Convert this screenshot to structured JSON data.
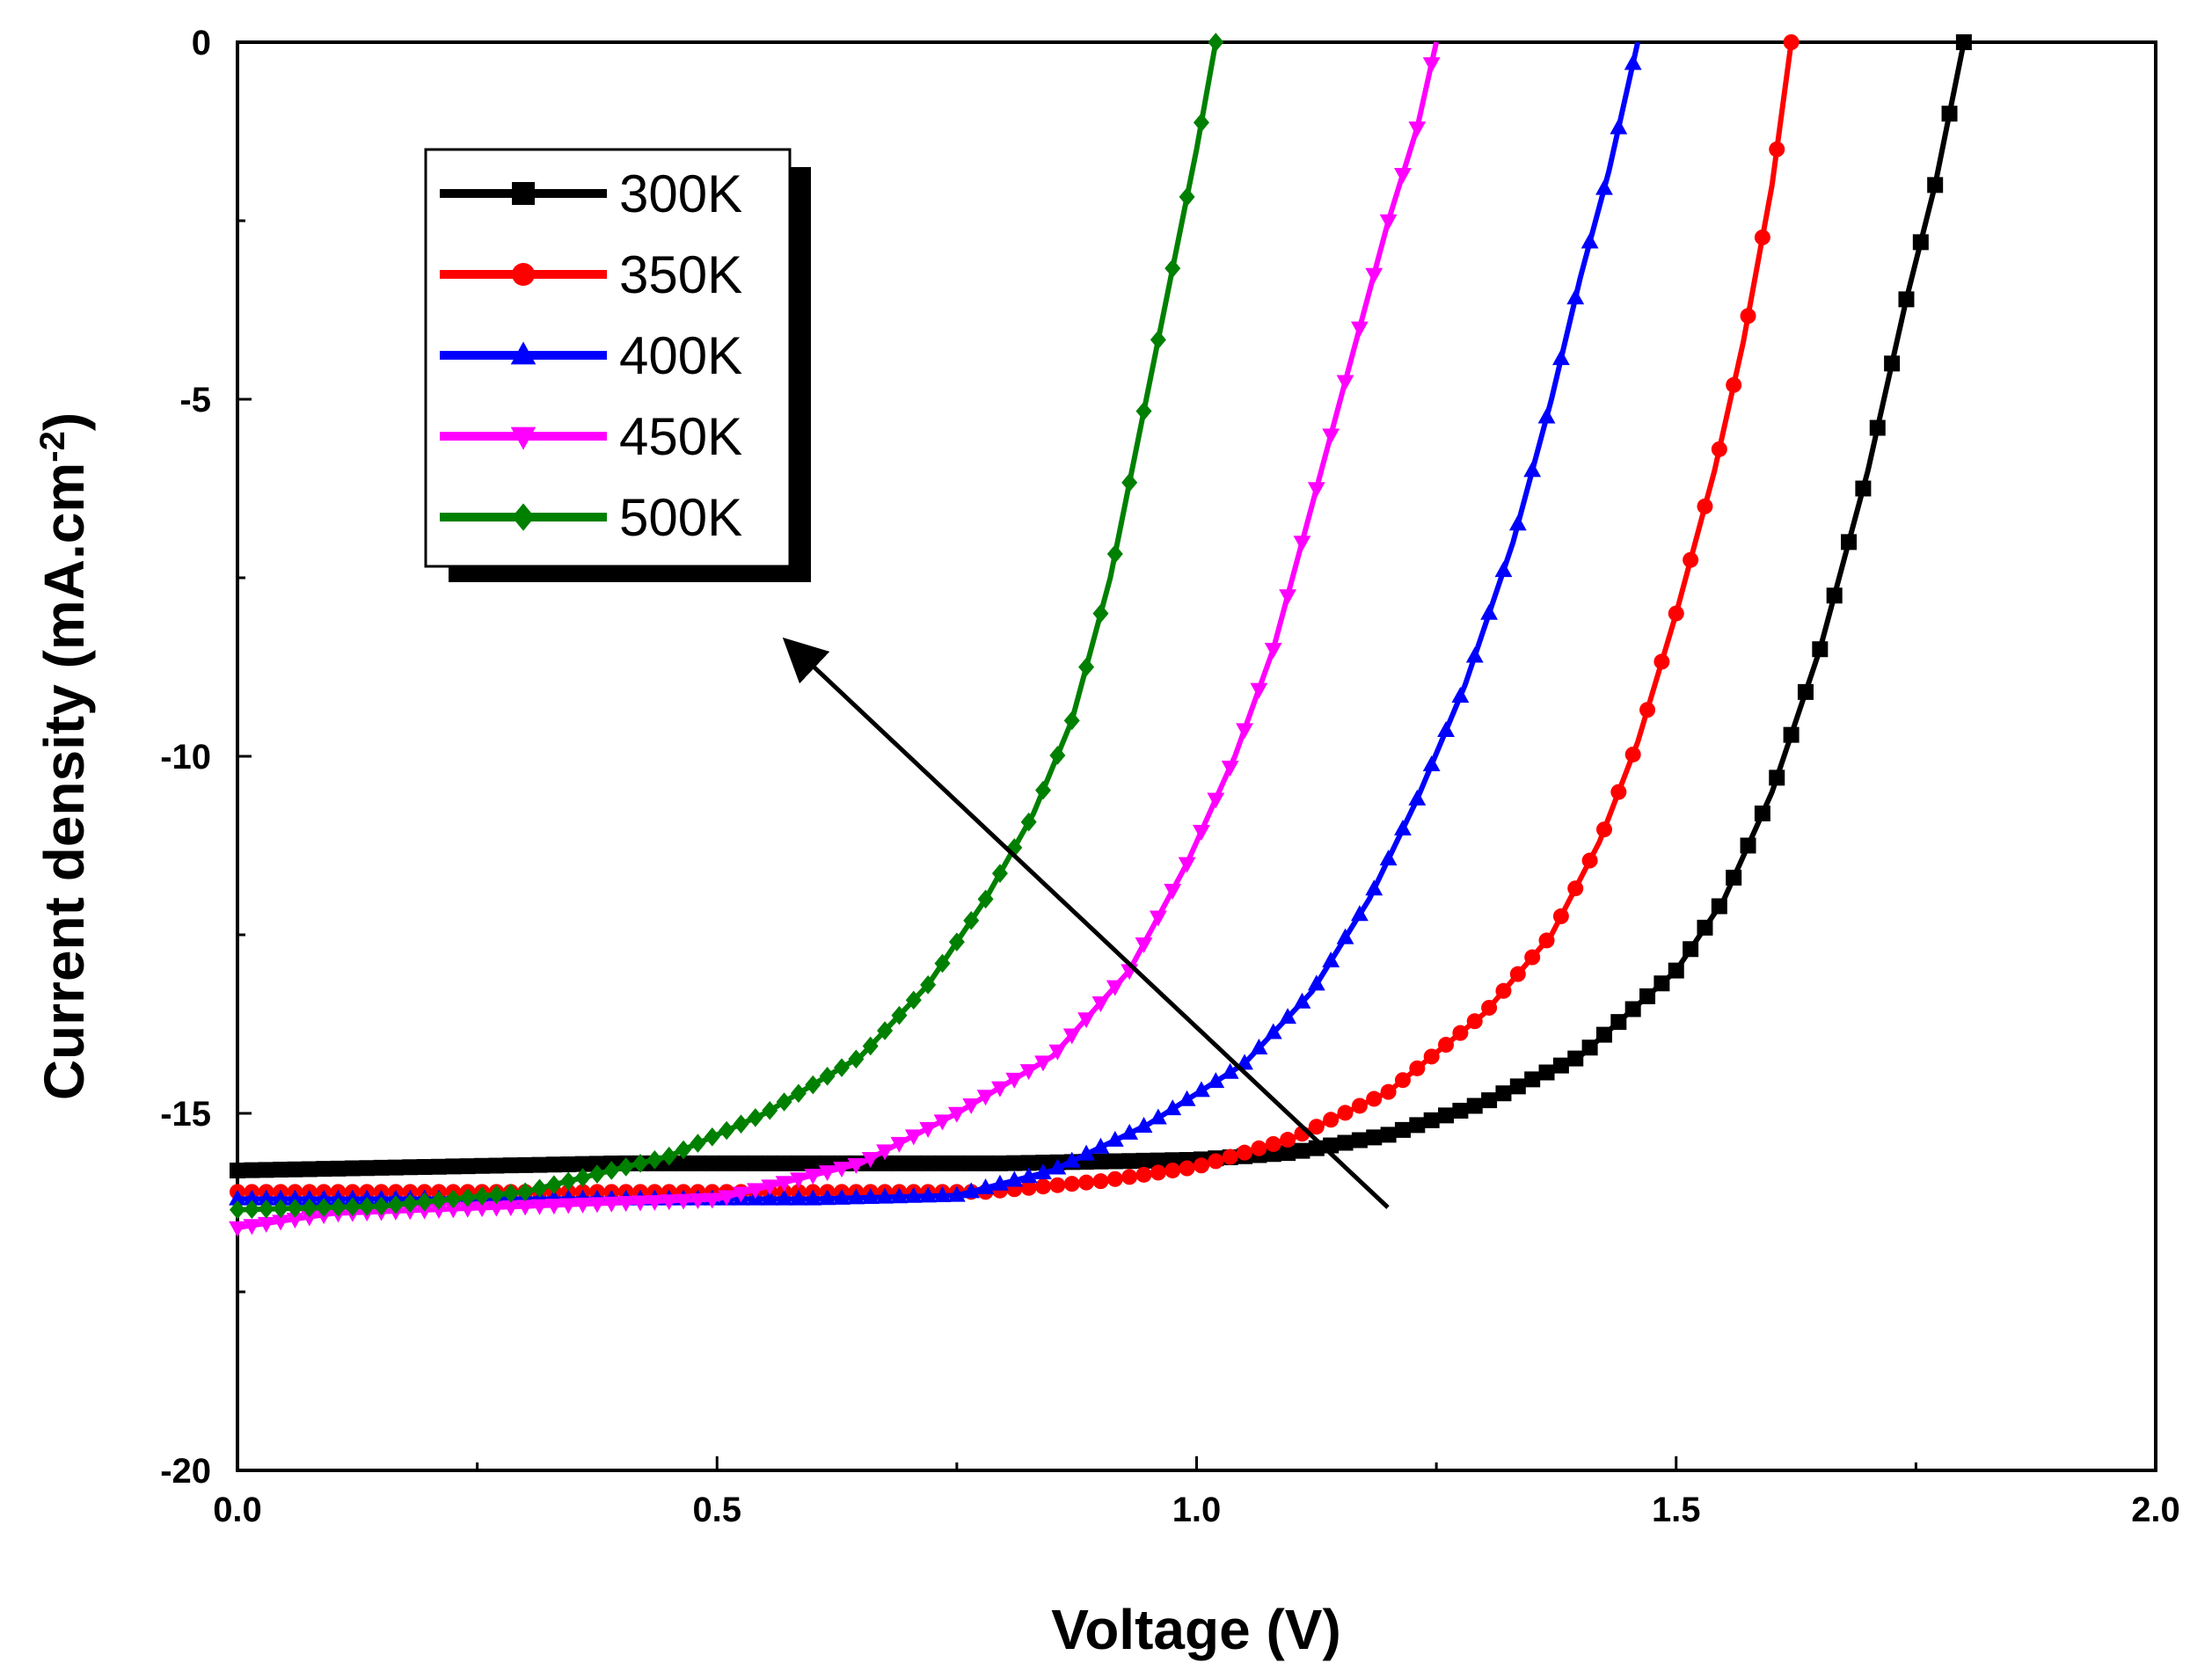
{
  "chart_data": {
    "type": "line",
    "title": "",
    "xlabel": "Voltage (V)",
    "ylabel": "Current density (mA.cm",
    "ylabel_superscript": "-2",
    "ylabel_close": ")",
    "xlim": [
      0.0,
      2.0
    ],
    "ylim": [
      -20,
      0
    ],
    "xticks": [
      "0.0",
      "0.5",
      "1.0",
      "1.5",
      "2.0"
    ],
    "yticks": [
      "0",
      "-5",
      "-10",
      "-15",
      "-20"
    ],
    "legend_position": "top-left",
    "annotation": "arrow indicating decreasing open-circuit voltage with increasing temperature",
    "series": [
      {
        "name": "300K",
        "color": "#000000",
        "marker": "square",
        "points": [
          [
            0.0,
            -15.8
          ],
          [
            0.2,
            -15.75
          ],
          [
            0.4,
            -15.7
          ],
          [
            0.6,
            -15.7
          ],
          [
            0.8,
            -15.7
          ],
          [
            1.0,
            -15.65
          ],
          [
            1.1,
            -15.55
          ],
          [
            1.2,
            -15.3
          ],
          [
            1.3,
            -14.85
          ],
          [
            1.4,
            -14.2
          ],
          [
            1.5,
            -13.0
          ],
          [
            1.55,
            -12.0
          ],
          [
            1.6,
            -10.5
          ],
          [
            1.65,
            -8.5
          ],
          [
            1.7,
            -6.0
          ],
          [
            1.74,
            -3.6
          ],
          [
            1.77,
            -2.0
          ],
          [
            1.8,
            0.0
          ]
        ]
      },
      {
        "name": "350K",
        "color": "#ff0000",
        "marker": "circle",
        "points": [
          [
            0.0,
            -16.1
          ],
          [
            0.2,
            -16.1
          ],
          [
            0.4,
            -16.1
          ],
          [
            0.6,
            -16.1
          ],
          [
            0.78,
            -16.1
          ],
          [
            0.9,
            -15.95
          ],
          [
            1.0,
            -15.75
          ],
          [
            1.1,
            -15.35
          ],
          [
            1.2,
            -14.7
          ],
          [
            1.3,
            -13.6
          ],
          [
            1.37,
            -12.5
          ],
          [
            1.42,
            -11.2
          ],
          [
            1.46,
            -9.8
          ],
          [
            1.5,
            -8.0
          ],
          [
            1.54,
            -6.0
          ],
          [
            1.57,
            -4.2
          ],
          [
            1.6,
            -2.0
          ],
          [
            1.62,
            0.0
          ]
        ]
      },
      {
        "name": "400K",
        "color": "#0000ff",
        "marker": "triangle-up",
        "points": [
          [
            0.0,
            -16.2
          ],
          [
            0.2,
            -16.2
          ],
          [
            0.4,
            -16.2
          ],
          [
            0.6,
            -16.2
          ],
          [
            0.75,
            -16.15
          ],
          [
            0.85,
            -15.8
          ],
          [
            0.95,
            -15.15
          ],
          [
            1.05,
            -14.3
          ],
          [
            1.12,
            -13.3
          ],
          [
            1.18,
            -12.0
          ],
          [
            1.23,
            -10.6
          ],
          [
            1.28,
            -9.0
          ],
          [
            1.33,
            -7.0
          ],
          [
            1.37,
            -5.0
          ],
          [
            1.4,
            -3.3
          ],
          [
            1.43,
            -1.8
          ],
          [
            1.46,
            0.0
          ]
        ]
      },
      {
        "name": "450K",
        "color": "#ff00ff",
        "marker": "triangle-down",
        "points": [
          [
            0.0,
            -16.6
          ],
          [
            0.1,
            -16.4
          ],
          [
            0.3,
            -16.3
          ],
          [
            0.5,
            -16.2
          ],
          [
            0.65,
            -15.7
          ],
          [
            0.75,
            -15.0
          ],
          [
            0.85,
            -14.2
          ],
          [
            0.93,
            -13.0
          ],
          [
            0.99,
            -11.5
          ],
          [
            1.04,
            -10.0
          ],
          [
            1.08,
            -8.5
          ],
          [
            1.12,
            -6.5
          ],
          [
            1.16,
            -4.5
          ],
          [
            1.2,
            -2.5
          ],
          [
            1.23,
            -1.2
          ],
          [
            1.25,
            0.0
          ]
        ]
      },
      {
        "name": "500K",
        "color": "#008000",
        "marker": "diamond",
        "points": [
          [
            0.0,
            -16.35
          ],
          [
            0.15,
            -16.3
          ],
          [
            0.3,
            -16.1
          ],
          [
            0.45,
            -15.6
          ],
          [
            0.55,
            -15.0
          ],
          [
            0.65,
            -14.2
          ],
          [
            0.72,
            -13.2
          ],
          [
            0.78,
            -12.0
          ],
          [
            0.83,
            -10.8
          ],
          [
            0.87,
            -9.5
          ],
          [
            0.91,
            -7.5
          ],
          [
            0.94,
            -5.5
          ],
          [
            0.97,
            -3.5
          ],
          [
            1.0,
            -1.5
          ],
          [
            1.02,
            0.0
          ]
        ]
      }
    ]
  }
}
